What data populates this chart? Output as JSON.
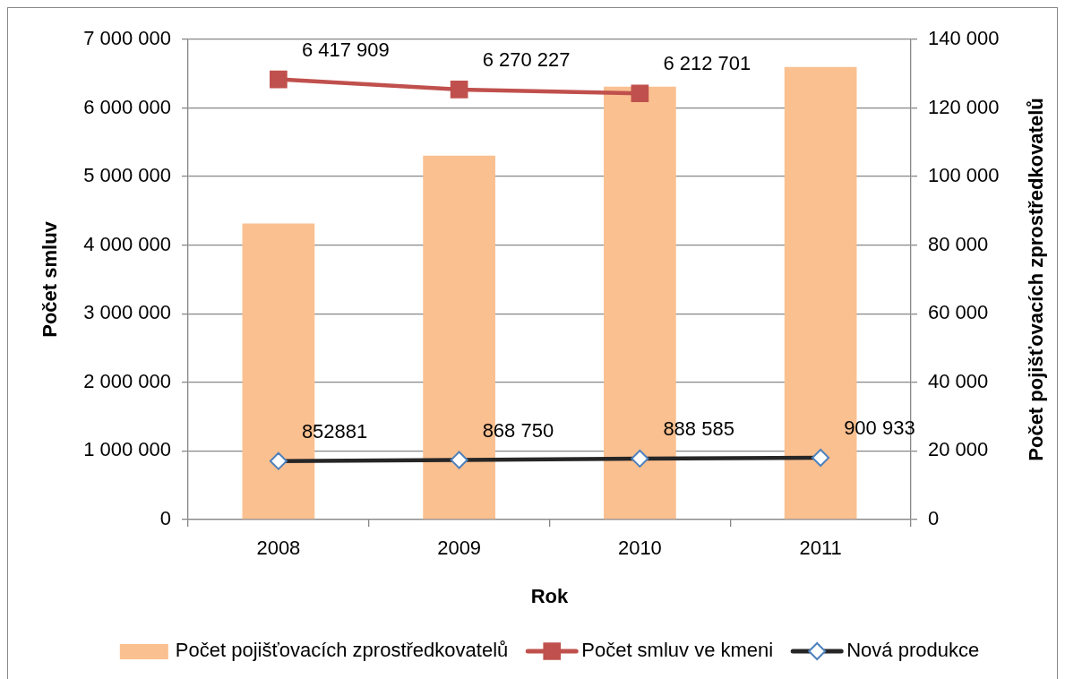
{
  "chart_data": {
    "type": "bar",
    "xlabel": "Rok",
    "ylabel": "Počet smluv",
    "y2label": "Počet pojišťovacích zprostředkovatelů",
    "categories": [
      "2008",
      "2009",
      "2010",
      "2011"
    ],
    "series": [
      {
        "name": "Počet pojišťovacích zprostředkovatelů",
        "axis": "y2",
        "color": "#fac090",
        "values": [
          86300,
          106100,
          126200,
          132000
        ]
      },
      {
        "name": "Počet smluv ve kmeni",
        "type": "line",
        "axis": "y",
        "color": "#c0504d",
        "marker": "square",
        "values": [
          6417909,
          6270227,
          6212701,
          null
        ],
        "value_labels": [
          "6 417 909",
          "6 270 227",
          "6 212 701",
          null
        ]
      },
      {
        "name": "Nová produkce",
        "type": "line",
        "axis": "y",
        "color": "#262626",
        "marker": "diamond",
        "values": [
          852881,
          868750,
          888585,
          900933
        ],
        "value_labels": [
          "852881",
          "868 750",
          "888 585",
          "900 933"
        ]
      }
    ],
    "ylim": [
      0,
      7000000
    ],
    "yticks": [
      0,
      {
        "value": 1000000,
        "label": "1 000 000"
      },
      {
        "value": 2000000,
        "label": "2 000 000"
      },
      {
        "value": 3000000,
        "label": "3 000 000"
      },
      {
        "value": 4000000,
        "label": "4 000 000"
      },
      {
        "value": 5000000,
        "label": "5 000 000"
      },
      {
        "value": 6000000,
        "label": "6 000 000"
      },
      {
        "value": 7000000,
        "label": "7 000 000"
      }
    ],
    "y2lim": [
      0,
      140000
    ],
    "y2ticks": [
      0,
      {
        "value": 20000,
        "label": "20 000"
      },
      {
        "value": 40000,
        "label": "40 000"
      },
      {
        "value": 60000,
        "label": "60 000"
      },
      {
        "value": 80000,
        "label": "80 000"
      },
      {
        "value": 100000,
        "label": "100 000"
      },
      {
        "value": 120000,
        "label": "120 000"
      },
      {
        "value": 140000,
        "label": "140 000"
      }
    ],
    "grid": "y",
    "legend": "bottom"
  }
}
